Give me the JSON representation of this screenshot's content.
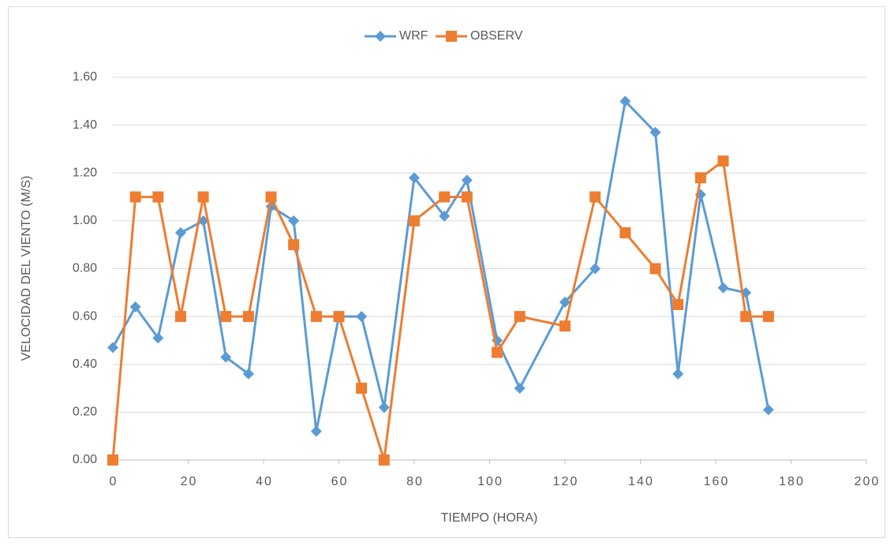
{
  "chart_data": {
    "type": "line",
    "x": [
      0,
      6,
      12,
      18,
      24,
      30,
      36,
      42,
      48,
      54,
      60,
      66,
      72,
      80,
      88,
      94,
      102,
      108,
      120,
      128,
      136,
      144,
      150,
      156,
      162,
      168,
      174
    ],
    "series": [
      {
        "name": "WRF",
        "color": "#5b9bd5",
        "marker": "diamond",
        "values": [
          0.47,
          0.64,
          0.51,
          0.95,
          1.0,
          0.43,
          0.36,
          1.06,
          1.0,
          0.12,
          0.6,
          0.6,
          0.22,
          1.18,
          1.02,
          1.17,
          0.5,
          0.3,
          0.66,
          0.8,
          1.5,
          1.37,
          0.36,
          1.11,
          0.72,
          0.7,
          0.21
        ]
      },
      {
        "name": "OBSERV",
        "color": "#ed7d31",
        "marker": "square",
        "values": [
          0,
          1.1,
          1.1,
          0.6,
          1.1,
          0.6,
          0.6,
          1.1,
          0.9,
          0.6,
          0.6,
          0.3,
          0,
          1.0,
          1.1,
          1.1,
          0.45,
          0.6,
          0.56,
          1.1,
          0.95,
          0.8,
          0.65,
          1.18,
          1.25,
          0.6,
          0.6
        ]
      }
    ],
    "xlabel": "TIEMPO (HORA)",
    "ylabel": "VELOCIDAD DEL VIENTO (M/S)",
    "xlim": [
      0,
      200
    ],
    "xticks": [
      0,
      20,
      40,
      60,
      80,
      100,
      120,
      140,
      160,
      180,
      200
    ],
    "ylim": [
      0,
      1.6
    ],
    "yticks": [
      {
        "value": 0,
        "label": "0.00"
      },
      {
        "value": 0.2,
        "label": "0.20"
      },
      {
        "value": 0.4,
        "label": "0.40"
      },
      {
        "value": 0.6,
        "label": "0.60"
      },
      {
        "value": 0.8,
        "label": "0.80"
      },
      {
        "value": 1.0,
        "label": "1.00"
      },
      {
        "value": 1.2,
        "label": "1.20"
      },
      {
        "value": 1.4,
        "label": "1.40"
      },
      {
        "value": 1.6,
        "label": "1.60"
      }
    ],
    "grid": true,
    "legend": "top"
  }
}
